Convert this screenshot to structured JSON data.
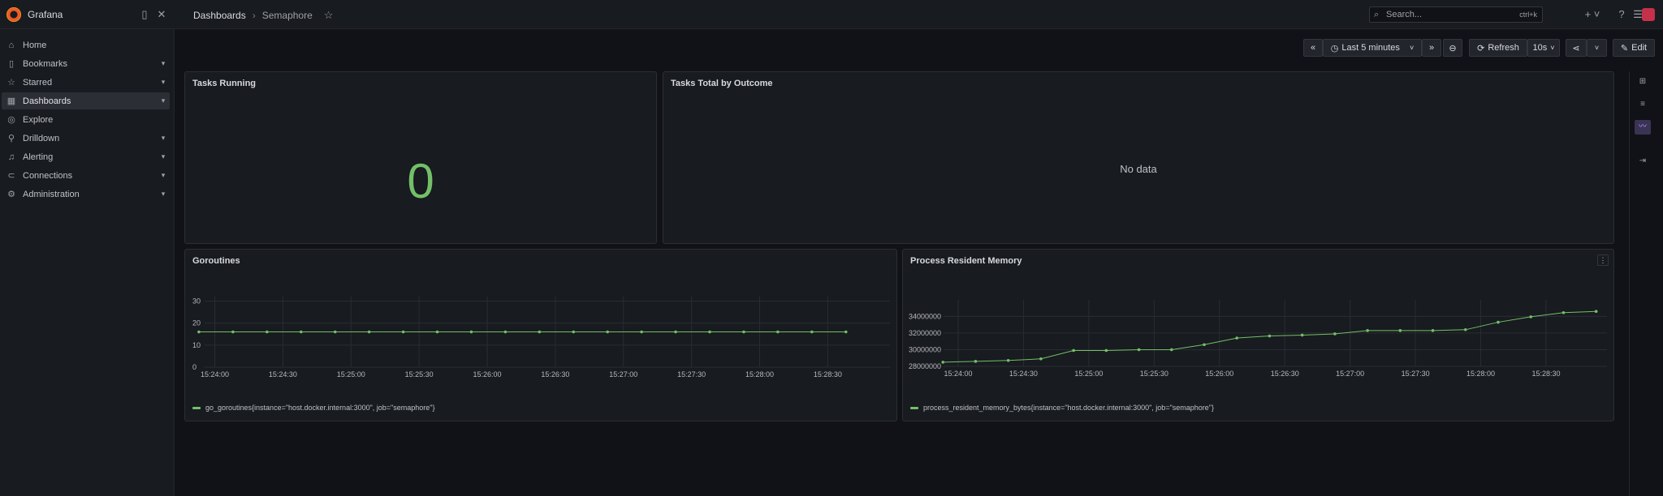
{
  "app": {
    "name": "Grafana"
  },
  "breadcrumb": {
    "parent": "Dashboards",
    "separator": "›",
    "current": "Semaphore"
  },
  "search": {
    "placeholder": "Search...",
    "shortcut": "ctrl+k"
  },
  "sidebar": {
    "items": [
      {
        "label": "Home",
        "icon": "home-icon",
        "expandable": false,
        "active": false
      },
      {
        "label": "Bookmarks",
        "icon": "bookmark-icon",
        "expandable": true,
        "active": false
      },
      {
        "label": "Starred",
        "icon": "star-icon",
        "expandable": true,
        "active": false
      },
      {
        "label": "Dashboards",
        "icon": "dashboards-icon",
        "expandable": true,
        "active": true
      },
      {
        "label": "Explore",
        "icon": "compass-icon",
        "expandable": false,
        "active": false
      },
      {
        "label": "Drilldown",
        "icon": "microscope-icon",
        "expandable": true,
        "active": false
      },
      {
        "label": "Alerting",
        "icon": "bell-icon",
        "expandable": true,
        "active": false
      },
      {
        "label": "Connections",
        "icon": "link-icon",
        "expandable": true,
        "active": false
      },
      {
        "label": "Administration",
        "icon": "gear-icon",
        "expandable": true,
        "active": false
      }
    ]
  },
  "toolbar": {
    "time_range": "Last 5 minutes",
    "refresh_label": "Refresh",
    "refresh_interval": "10s",
    "edit_label": "Edit"
  },
  "panels": {
    "tasks_running": {
      "title": "Tasks Running",
      "value": "0"
    },
    "tasks_total": {
      "title": "Tasks Total by Outcome",
      "empty_text": "No data"
    },
    "goroutines": {
      "title": "Goroutines",
      "legend": "go_goroutines{instance=\"host.docker.internal:3000\", job=\"semaphore\"}"
    },
    "memory": {
      "title": "Process Resident Memory",
      "legend": "process_resident_memory_bytes{instance=\"host.docker.internal:3000\", job=\"semaphore\"}"
    }
  },
  "colors": {
    "series": "#73bf69",
    "background": "#111217",
    "panel": "#181b1f"
  },
  "chart_data": [
    {
      "type": "line",
      "title": "Goroutines",
      "x_tick_labels": [
        "15:24:00",
        "15:24:30",
        "15:25:00",
        "15:25:30",
        "15:26:00",
        "15:26:30",
        "15:27:00",
        "15:27:30",
        "15:28:00",
        "15:28:30"
      ],
      "y_tick_labels": [
        "0",
        "10",
        "20",
        "30"
      ],
      "ylim": [
        0,
        30
      ],
      "series": [
        {
          "name": "go_goroutines{instance=\"host.docker.internal:3000\", job=\"semaphore\"}",
          "x": [
            "15:23:53",
            "15:24:08",
            "15:24:23",
            "15:24:38",
            "15:24:53",
            "15:25:08",
            "15:25:23",
            "15:25:38",
            "15:25:53",
            "15:26:08",
            "15:26:23",
            "15:26:38",
            "15:26:53",
            "15:27:08",
            "15:27:23",
            "15:27:38",
            "15:27:53",
            "15:28:08",
            "15:28:23",
            "15:28:38"
          ],
          "values": [
            16,
            16,
            16,
            16,
            16,
            16,
            16,
            16,
            16,
            16,
            16,
            16,
            16,
            16,
            16,
            16,
            16,
            16,
            16,
            16
          ]
        }
      ],
      "grid": true,
      "legend_position": "bottom-left"
    },
    {
      "type": "line",
      "title": "Process Resident Memory",
      "x_tick_labels": [
        "15:24:00",
        "15:24:30",
        "15:25:00",
        "15:25:30",
        "15:26:00",
        "15:26:30",
        "15:27:00",
        "15:27:30",
        "15:28:00",
        "15:28:30"
      ],
      "y_tick_labels": [
        "28000000",
        "30000000",
        "32000000",
        "34000000"
      ],
      "ylim": [
        28000000,
        35400000
      ],
      "series": [
        {
          "name": "process_resident_memory_bytes{instance=\"host.docker.internal:3000\", job=\"semaphore\"}",
          "x": [
            "15:23:53",
            "15:24:08",
            "15:24:23",
            "15:24:38",
            "15:24:53",
            "15:25:08",
            "15:25:23",
            "15:25:38",
            "15:25:53",
            "15:26:08",
            "15:26:23",
            "15:26:38",
            "15:26:53",
            "15:27:08",
            "15:27:23",
            "15:27:38",
            "15:27:53",
            "15:28:08",
            "15:28:23",
            "15:28:38",
            "15:28:53"
          ],
          "values": [
            28500000,
            28600000,
            28700000,
            28900000,
            29900000,
            29900000,
            30000000,
            30000000,
            30600000,
            31400000,
            31650000,
            31750000,
            31900000,
            32300000,
            32300000,
            32300000,
            32400000,
            33300000,
            33950000,
            34450000,
            34600000
          ]
        }
      ],
      "grid": true,
      "legend_position": "bottom-left"
    }
  ]
}
